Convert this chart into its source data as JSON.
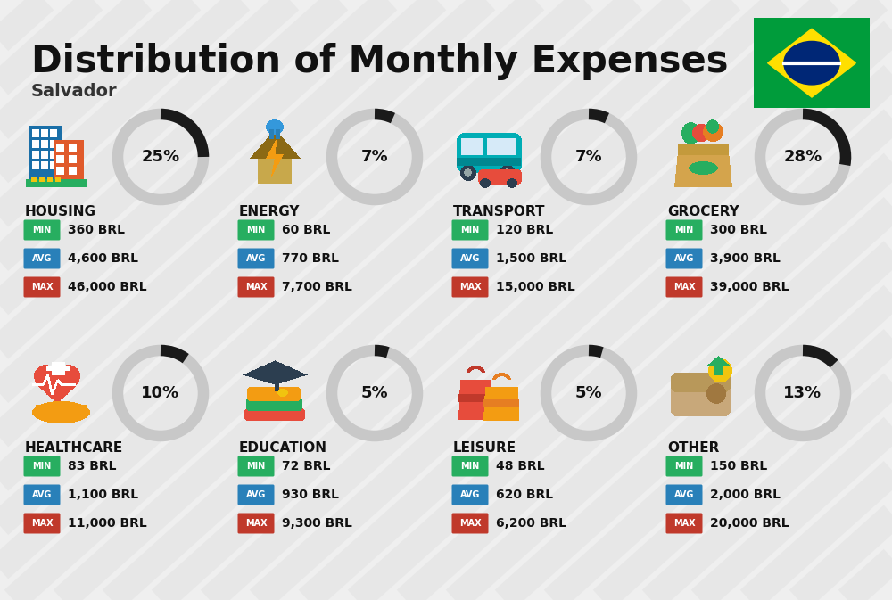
{
  "title": "Distribution of Monthly Expenses",
  "subtitle": "Salvador",
  "bg_color": "#efefef",
  "title_color": "#111111",
  "subtitle_color": "#333333",
  "categories": [
    {
      "name": "HOUSING",
      "pct": 25,
      "min_val": "360 BRL",
      "avg_val": "4,600 BRL",
      "max_val": "46,000 BRL",
      "row": 0,
      "col": 0
    },
    {
      "name": "ENERGY",
      "pct": 7,
      "min_val": "60 BRL",
      "avg_val": "770 BRL",
      "max_val": "7,700 BRL",
      "row": 0,
      "col": 1
    },
    {
      "name": "TRANSPORT",
      "pct": 7,
      "min_val": "120 BRL",
      "avg_val": "1,500 BRL",
      "max_val": "15,000 BRL",
      "row": 0,
      "col": 2
    },
    {
      "name": "GROCERY",
      "pct": 28,
      "min_val": "300 BRL",
      "avg_val": "3,900 BRL",
      "max_val": "39,000 BRL",
      "row": 0,
      "col": 3
    },
    {
      "name": "HEALTHCARE",
      "pct": 10,
      "min_val": "83 BRL",
      "avg_val": "1,100 BRL",
      "max_val": "11,000 BRL",
      "row": 1,
      "col": 0
    },
    {
      "name": "EDUCATION",
      "pct": 5,
      "min_val": "72 BRL",
      "avg_val": "930 BRL",
      "max_val": "9,300 BRL",
      "row": 1,
      "col": 1
    },
    {
      "name": "LEISURE",
      "pct": 5,
      "min_val": "48 BRL",
      "avg_val": "620 BRL",
      "max_val": "6,200 BRL",
      "row": 1,
      "col": 2
    },
    {
      "name": "OTHER",
      "pct": 13,
      "min_val": "150 BRL",
      "avg_val": "2,000 BRL",
      "max_val": "20,000 BRL",
      "row": 1,
      "col": 3
    }
  ],
  "min_color": "#27ae60",
  "avg_color": "#2980b9",
  "max_color": "#c0392b",
  "donut_fg": "#1a1a1a",
  "donut_bg": "#c8c8c8",
  "stripe_color": "#e4e4e4",
  "flag_green": "#009c3b",
  "flag_yellow": "#FFDF00",
  "flag_blue": "#002776"
}
